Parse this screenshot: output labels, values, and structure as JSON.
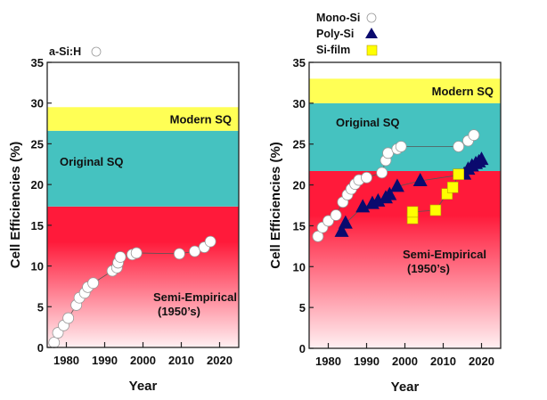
{
  "chart_data": [
    {
      "type": "scatter",
      "panel": "left",
      "xlabel": "Year",
      "ylabel": "Cell Efficiencies (%)",
      "xlim": [
        1975,
        2025
      ],
      "ylim": [
        0,
        35
      ],
      "xticks": [
        1980,
        1990,
        2000,
        2010,
        2020
      ],
      "yticks": [
        0,
        5,
        10,
        15,
        20,
        25,
        30,
        35
      ],
      "grid": false,
      "legend_position": "top-left",
      "bands": [
        {
          "name": "Semi-Empirical",
          "label": "Semi-Empirical",
          "sublabel": "(1950’s)",
          "from": 0,
          "to": 17.3,
          "color": "#ff1a3a",
          "gradient": true
        },
        {
          "name": "Original SQ",
          "label": "Original SQ",
          "from": 17.3,
          "to": 26.6,
          "color": "#45c2c0"
        },
        {
          "name": "Modern SQ",
          "label": "Modern SQ",
          "from": 26.6,
          "to": 29.5,
          "color": "#ffff55"
        }
      ],
      "series": [
        {
          "name": "a-Si:H",
          "marker": "circle",
          "color": "#ffffff",
          "x": [
            1976.8,
            1977.8,
            1979.3,
            1980.5,
            1982.6,
            1983.4,
            1984.8,
            1985.6,
            1987.0,
            1992.0,
            1993.2,
            1993.5,
            1994.1,
            1997.2,
            1998.3,
            2009.5,
            2013.5,
            2016.0,
            2017.6
          ],
          "y": [
            0.6,
            1.8,
            2.7,
            3.6,
            5.2,
            6.1,
            6.7,
            7.4,
            7.9,
            9.4,
            9.8,
            10.4,
            11.1,
            11.4,
            11.6,
            11.5,
            11.8,
            12.3,
            13.0
          ]
        }
      ]
    },
    {
      "type": "scatter",
      "panel": "right",
      "xlabel": "Year",
      "ylabel": "Cell Efficiencies (%)",
      "xlim": [
        1975,
        2025
      ],
      "ylim": [
        0,
        35
      ],
      "xticks": [
        1980,
        1990,
        2000,
        2010,
        2020
      ],
      "yticks": [
        0,
        5,
        10,
        15,
        20,
        25,
        30,
        35
      ],
      "grid": false,
      "legend_position": "top-left",
      "bands": [
        {
          "name": "Semi-Empirical",
          "label": "Semi-Empirical",
          "sublabel": "(1950’s)",
          "from": 0,
          "to": 21.7,
          "color": "#ff1a3a",
          "gradient": true
        },
        {
          "name": "Original SQ",
          "label": "Original SQ",
          "from": 21.7,
          "to": 30.0,
          "color": "#45c2c0"
        },
        {
          "name": "Modern SQ",
          "label": "Modern SQ",
          "from": 30.0,
          "to": 33.0,
          "color": "#ffff55"
        }
      ],
      "series": [
        {
          "name": "Mono-Si",
          "marker": "circle",
          "color": "#ffffff",
          "x": [
            1977.3,
            1978.5,
            1980.0,
            1982.0,
            1983.8,
            1985.0,
            1986.0,
            1987.0,
            1988.0,
            1990.0,
            1994.0,
            1995.0,
            1995.6,
            1998.0,
            1999.0,
            2014.0,
            2016.5,
            2018.0
          ],
          "y": [
            13.7,
            14.8,
            15.6,
            16.3,
            17.9,
            18.8,
            19.5,
            20.1,
            20.6,
            20.9,
            21.5,
            23.0,
            23.9,
            24.4,
            24.7,
            24.7,
            25.4,
            26.1
          ]
        },
        {
          "name": "Poly-Si",
          "marker": "triangle",
          "color": "#0a0a6e",
          "x": [
            1983.5,
            1984.5,
            1989.0,
            1991.5,
            1993.0,
            1995.0,
            1996.0,
            1998.0,
            2004.0,
            2015.5,
            2016.5,
            2017.5,
            2018.5,
            2019.3,
            2020.0
          ],
          "y": [
            14.3,
            15.3,
            17.3,
            17.7,
            18.0,
            18.4,
            18.8,
            19.8,
            20.5,
            21.3,
            21.9,
            22.3,
            22.6,
            22.8,
            23.1
          ]
        },
        {
          "name": "Si-film",
          "marker": "square",
          "color": "#ffff00",
          "x": [
            2002.0,
            2002.0,
            2008.0,
            2011.0,
            2012.5,
            2014.0
          ],
          "y": [
            15.9,
            16.7,
            16.9,
            18.9,
            19.7,
            21.3
          ]
        }
      ]
    }
  ]
}
